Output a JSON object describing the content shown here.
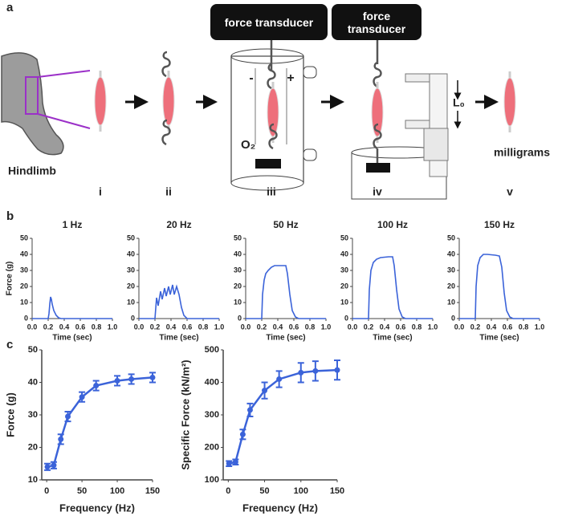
{
  "panel_labels": [
    "a",
    "b",
    "c"
  ],
  "diagram": {
    "force_transducer": [
      "force transducer",
      "force transducer"
    ],
    "electrodes": [
      "-",
      "+"
    ],
    "oxygen": "O₂",
    "length": "L₀",
    "hindlimb": "Hindlimb",
    "milligrams": "milligrams",
    "steps": [
      "i",
      "ii",
      "iii",
      "iv",
      "v"
    ]
  },
  "chart_data": [
    {
      "type": "line",
      "title": "1 Hz",
      "xlabel": "Time (sec)",
      "ylabel": "Force (g)",
      "color": "#3b63d9",
      "xlim": [
        0,
        1
      ],
      "ylim": [
        0,
        50
      ],
      "xticks": [
        {
          "value": 0,
          "label": "0.0"
        },
        {
          "value": 0.2,
          "label": "0.2"
        },
        {
          "value": 0.4,
          "label": "0.4"
        },
        {
          "value": 0.6,
          "label": "0.6"
        },
        {
          "value": 0.8,
          "label": "0.8"
        },
        {
          "value": 1,
          "label": "1.0"
        }
      ],
      "yticks": [
        0,
        10,
        20,
        30,
        40,
        50
      ],
      "x": [
        0,
        0.2,
        0.21,
        0.22,
        0.23,
        0.24,
        0.25,
        0.27,
        0.3,
        0.33,
        0.36,
        1.0
      ],
      "values": [
        0,
        0,
        3,
        9,
        13.5,
        12,
        9,
        5,
        2,
        0.5,
        0,
        0
      ]
    },
    {
      "type": "line",
      "title": "20 Hz",
      "xlabel": "Time (sec)",
      "color": "#3b63d9",
      "xlim": [
        0,
        1
      ],
      "ylim": [
        0,
        50
      ],
      "xticks": [
        {
          "value": 0,
          "label": "0.0"
        },
        {
          "value": 0.2,
          "label": "0.2"
        },
        {
          "value": 0.4,
          "label": "0.4"
        },
        {
          "value": 0.6,
          "label": "0.6"
        },
        {
          "value": 0.8,
          "label": "0.8"
        },
        {
          "value": 1,
          "label": "1.0"
        }
      ],
      "yticks": [
        0,
        10,
        20,
        30,
        40,
        50
      ],
      "x": [
        0,
        0.2,
        0.22,
        0.24,
        0.27,
        0.29,
        0.32,
        0.34,
        0.37,
        0.39,
        0.42,
        0.44,
        0.47,
        0.5,
        0.53,
        0.56,
        0.6,
        1.0
      ],
      "values": [
        0,
        0,
        13,
        8,
        17,
        12,
        19,
        14,
        20,
        15,
        21,
        15,
        20,
        15,
        7,
        2,
        0,
        0
      ]
    },
    {
      "type": "line",
      "title": "50 Hz",
      "xlabel": "Time (sec)",
      "color": "#3b63d9",
      "xlim": [
        0,
        1
      ],
      "ylim": [
        0,
        50
      ],
      "xticks": [
        {
          "value": 0,
          "label": "0.0"
        },
        {
          "value": 0.2,
          "label": "0.2"
        },
        {
          "value": 0.4,
          "label": "0.4"
        },
        {
          "value": 0.6,
          "label": "0.6"
        },
        {
          "value": 0.8,
          "label": "0.8"
        },
        {
          "value": 1,
          "label": "1.0"
        }
      ],
      "yticks": [
        0,
        10,
        20,
        30,
        40,
        50
      ],
      "x": [
        0,
        0.2,
        0.21,
        0.23,
        0.25,
        0.28,
        0.32,
        0.36,
        0.4,
        0.45,
        0.5,
        0.52,
        0.55,
        0.58,
        0.62,
        0.66,
        1.0
      ],
      "values": [
        0,
        0,
        15,
        24,
        28,
        30,
        32,
        33,
        33,
        33,
        33,
        28,
        15,
        5,
        1,
        0,
        0
      ]
    },
    {
      "type": "line",
      "title": "100 Hz",
      "xlabel": "Time (sec)",
      "color": "#3b63d9",
      "xlim": [
        0,
        1
      ],
      "ylim": [
        0,
        50
      ],
      "xticks": [
        {
          "value": 0,
          "label": "0.0"
        },
        {
          "value": 0.2,
          "label": "0.2"
        },
        {
          "value": 0.4,
          "label": "0.4"
        },
        {
          "value": 0.6,
          "label": "0.6"
        },
        {
          "value": 0.8,
          "label": "0.8"
        },
        {
          "value": 1,
          "label": "1.0"
        }
      ],
      "yticks": [
        0,
        10,
        20,
        30,
        40,
        50
      ],
      "x": [
        0,
        0.2,
        0.21,
        0.23,
        0.26,
        0.3,
        0.35,
        0.45,
        0.5,
        0.52,
        0.55,
        0.58,
        0.62,
        0.66,
        1.0
      ],
      "values": [
        0,
        0,
        18,
        30,
        35,
        37,
        38,
        38.5,
        38.5,
        33,
        18,
        6,
        1,
        0,
        0
      ]
    },
    {
      "type": "line",
      "title": "150 Hz",
      "xlabel": "Time (sec)",
      "color": "#3b63d9",
      "xlim": [
        0,
        1
      ],
      "ylim": [
        0,
        50
      ],
      "xticks": [
        {
          "value": 0,
          "label": "0.0"
        },
        {
          "value": 0.2,
          "label": "0.2"
        },
        {
          "value": 0.4,
          "label": "0.4"
        },
        {
          "value": 0.6,
          "label": "0.6"
        },
        {
          "value": 0.8,
          "label": "0.8"
        },
        {
          "value": 1,
          "label": "1.0"
        }
      ],
      "yticks": [
        0,
        10,
        20,
        30,
        40,
        50
      ],
      "x": [
        0,
        0.2,
        0.21,
        0.23,
        0.26,
        0.3,
        0.35,
        0.45,
        0.5,
        0.53,
        0.56,
        0.59,
        0.63,
        0.67,
        1.0
      ],
      "values": [
        0,
        0,
        20,
        33,
        38,
        40,
        40,
        39.5,
        39,
        32,
        16,
        5,
        1,
        0,
        0
      ]
    },
    {
      "type": "errorline",
      "xlabel": "Frequency (Hz)",
      "ylabel": "Force (g)",
      "color": "#3b63d9",
      "xlim": [
        -7,
        150
      ],
      "ylim": [
        10,
        50
      ],
      "xticks": [
        0,
        50,
        100,
        150
      ],
      "yticks": [
        10,
        20,
        30,
        40,
        50
      ],
      "x": [
        1,
        10,
        20,
        30,
        50,
        70,
        100,
        120,
        150
      ],
      "values": [
        14,
        14.5,
        22.5,
        29.5,
        35.5,
        39,
        40.5,
        41,
        41.5
      ],
      "errors": [
        1,
        1,
        1.5,
        1.5,
        1.5,
        1.5,
        1.5,
        1.5,
        1.5
      ]
    },
    {
      "type": "errorline",
      "xlabel": "Frequency (Hz)",
      "ylabel": "Specific Force (kN/m²)",
      "color": "#3b63d9",
      "xlim": [
        -7,
        150
      ],
      "ylim": [
        100,
        500
      ],
      "xticks": [
        0,
        50,
        100,
        150
      ],
      "yticks": [
        100,
        200,
        300,
        400,
        500
      ],
      "x": [
        1,
        10,
        20,
        30,
        50,
        70,
        100,
        120,
        150
      ],
      "values": [
        150,
        155,
        240,
        315,
        375,
        410,
        430,
        435,
        438
      ],
      "errors": [
        8,
        8,
        15,
        20,
        25,
        25,
        30,
        30,
        30
      ]
    }
  ]
}
